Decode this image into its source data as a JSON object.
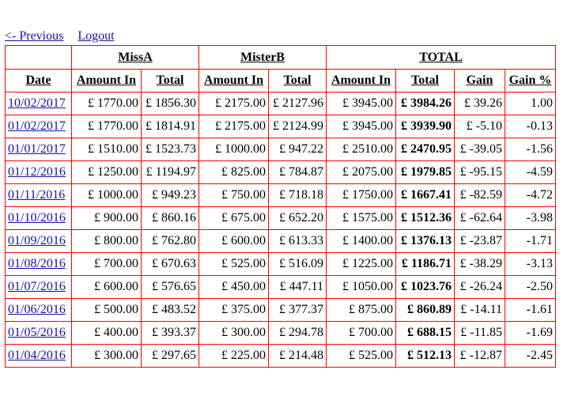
{
  "nav": {
    "previous": "<- Previous",
    "logout": "Logout"
  },
  "groups": {
    "a": "MissA",
    "b": "MisterB",
    "total": "TOTAL"
  },
  "columns": [
    "Date",
    "Amount In",
    "Total",
    "Amount In",
    "Total",
    "Amount In",
    "Total",
    "Gain",
    "Gain %"
  ],
  "rows": [
    [
      "10/02/2017",
      "£ 1770.00",
      "£ 1856.30",
      "£ 2175.00",
      "£ 2127.96",
      "£ 3945.00",
      "£ 3984.26",
      "£ 39.26",
      "1.00"
    ],
    [
      "01/02/2017",
      "£ 1770.00",
      "£ 1814.91",
      "£ 2175.00",
      "£ 2124.99",
      "£ 3945.00",
      "£ 3939.90",
      "£ -5.10",
      "-0.13"
    ],
    [
      "01/01/2017",
      "£ 1510.00",
      "£ 1523.73",
      "£ 1000.00",
      "£ 947.22",
      "£ 2510.00",
      "£ 2470.95",
      "£ -39.05",
      "-1.56"
    ],
    [
      "01/12/2016",
      "£ 1250.00",
      "£ 1194.97",
      "£ 825.00",
      "£ 784.87",
      "£ 2075.00",
      "£ 1979.85",
      "£ -95.15",
      "-4.59"
    ],
    [
      "01/11/2016",
      "£ 1000.00",
      "£ 949.23",
      "£ 750.00",
      "£ 718.18",
      "£ 1750.00",
      "£ 1667.41",
      "£ -82.59",
      "-4.72"
    ],
    [
      "01/10/2016",
      "£ 900.00",
      "£ 860.16",
      "£ 675.00",
      "£ 652.20",
      "£ 1575.00",
      "£ 1512.36",
      "£ -62.64",
      "-3.98"
    ],
    [
      "01/09/2016",
      "£ 800.00",
      "£ 762.80",
      "£ 600.00",
      "£ 613.33",
      "£ 1400.00",
      "£ 1376.13",
      "£ -23.87",
      "-1.71"
    ],
    [
      "01/08/2016",
      "£ 700.00",
      "£ 670.63",
      "£ 525.00",
      "£ 516.09",
      "£ 1225.00",
      "£ 1186.71",
      "£ -38.29",
      "-3.13"
    ],
    [
      "01/07/2016",
      "£ 600.00",
      "£ 576.65",
      "£ 450.00",
      "£ 447.11",
      "£ 1050.00",
      "£ 1023.76",
      "£ -26.24",
      "-2.50"
    ],
    [
      "01/06/2016",
      "£ 500.00",
      "£ 483.52",
      "£ 375.00",
      "£ 377.37",
      "£ 875.00",
      "£ 860.89",
      "£ -14.11",
      "-1.61"
    ],
    [
      "01/05/2016",
      "£ 400.00",
      "£ 393.37",
      "£ 300.00",
      "£ 294.78",
      "£ 700.00",
      "£ 688.15",
      "£ -11.85",
      "-1.69"
    ],
    [
      "01/04/2016",
      "£ 300.00",
      "£ 297.65",
      "£ 225.00",
      "£ 214.48",
      "£ 525.00",
      "£ 512.13",
      "£ -12.87",
      "-2.45"
    ]
  ]
}
